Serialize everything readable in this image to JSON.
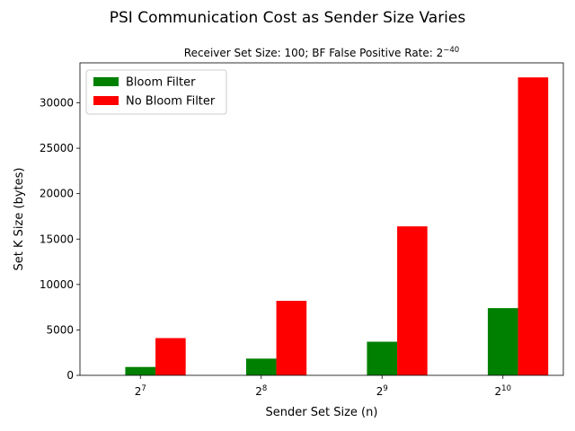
{
  "chart_data": {
    "type": "bar",
    "title": "PSI Communication Cost as Sender Size Varies",
    "subtitle": {
      "prefix": "Receiver Set Size: 100; BF False Positive Rate: 2",
      "exponent": "−40"
    },
    "xlabel": "Sender Set Size (n)",
    "ylabel": "Set K Size (bytes)",
    "categories": [
      {
        "base": "2",
        "exp": "7"
      },
      {
        "base": "2",
        "exp": "8"
      },
      {
        "base": "2",
        "exp": "9"
      },
      {
        "base": "2",
        "exp": "10"
      }
    ],
    "ylim": [
      0,
      34400
    ],
    "yticks": [
      0,
      5000,
      10000,
      15000,
      20000,
      25000,
      30000
    ],
    "ytick_labels": [
      "0",
      "5000",
      "10000",
      "15000",
      "20000",
      "25000",
      "30000"
    ],
    "grid": false,
    "legend": "top-left",
    "series": [
      {
        "name": "Bloom Filter",
        "color": "#008000",
        "values": [
          920,
          1840,
          3700,
          7400
        ]
      },
      {
        "name": "No Bloom Filter",
        "color": "#ff0000",
        "values": [
          4100,
          8200,
          16400,
          32800
        ]
      }
    ]
  }
}
